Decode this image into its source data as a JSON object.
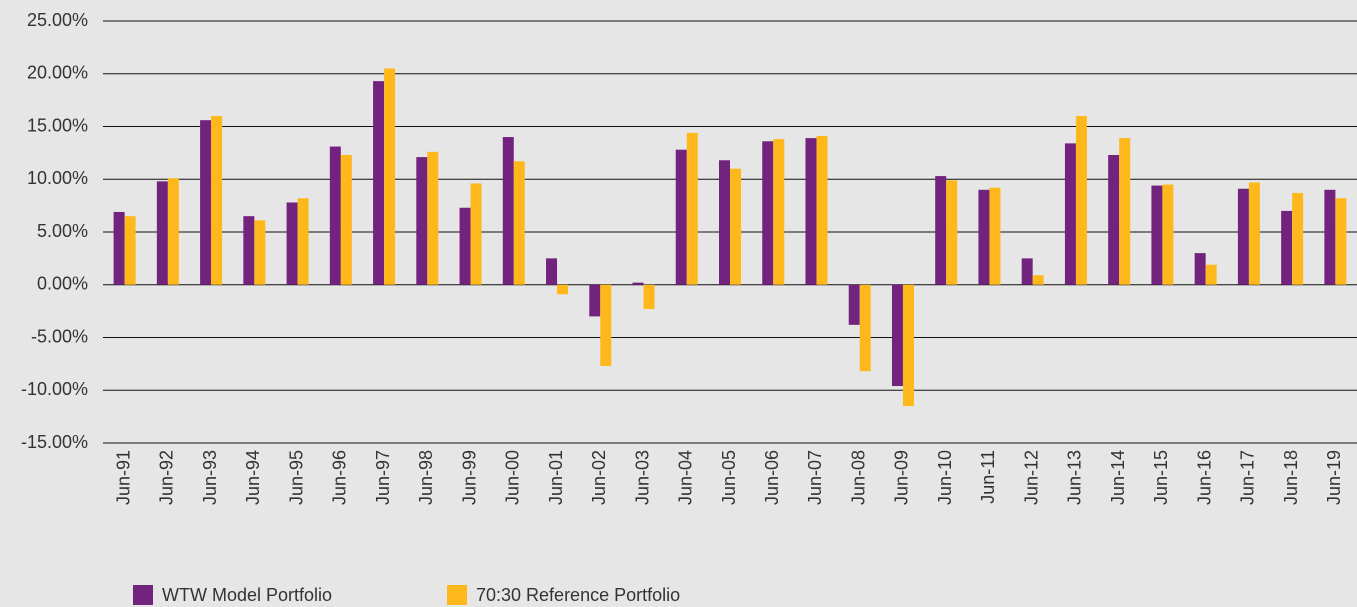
{
  "chart_data": {
    "type": "bar",
    "categories": [
      "Jun-91",
      "Jun-92",
      "Jun-93",
      "Jun-94",
      "Jun-95",
      "Jun-96",
      "Jun-97",
      "Jun-98",
      "Jun-99",
      "Jun-00",
      "Jun-01",
      "Jun-02",
      "Jun-03",
      "Jun-04",
      "Jun-05",
      "Jun-06",
      "Jun-07",
      "Jun-08",
      "Jun-09",
      "Jun-10",
      "Jun-11",
      "Jun-12",
      "Jun-13",
      "Jun-14",
      "Jun-15",
      "Jun-16",
      "Jun-17",
      "Jun-18",
      "Jun-19"
    ],
    "series": [
      {
        "name": "WTW Model Portfolio",
        "color": "#72237e",
        "values": [
          6.9,
          9.8,
          15.6,
          6.5,
          7.8,
          13.1,
          19.3,
          12.1,
          7.3,
          14.0,
          2.5,
          -3.0,
          0.2,
          12.8,
          11.8,
          13.6,
          13.9,
          -3.8,
          -9.6,
          10.3,
          9.0,
          2.5,
          13.4,
          12.3,
          9.4,
          3.0,
          9.1,
          7.0,
          9.0
        ]
      },
      {
        "name": "70:30 Reference Portfolio",
        "color": "#ffb81c",
        "values": [
          6.5,
          10.1,
          16.0,
          6.1,
          8.2,
          12.3,
          20.5,
          12.6,
          9.6,
          11.7,
          -0.9,
          -7.7,
          -2.3,
          14.4,
          11.0,
          13.8,
          14.1,
          -8.2,
          -11.5,
          9.9,
          9.2,
          0.9,
          16.0,
          13.9,
          9.5,
          1.9,
          9.7,
          8.7,
          8.2
        ]
      }
    ],
    "ylim": [
      -15,
      25
    ],
    "yticks": [
      {
        "value": -15,
        "label": "-15.00%"
      },
      {
        "value": -10,
        "label": "-10.00%"
      },
      {
        "value": -5,
        "label": "-5.00%"
      },
      {
        "value": 0,
        "label": "0.00%"
      },
      {
        "value": 5,
        "label": "5.00%"
      },
      {
        "value": 10,
        "label": "10.00%"
      },
      {
        "value": 15,
        "label": "15.00%"
      },
      {
        "value": 20,
        "label": "20.00%"
      },
      {
        "value": 25,
        "label": "25.00%"
      }
    ],
    "grid": true
  }
}
